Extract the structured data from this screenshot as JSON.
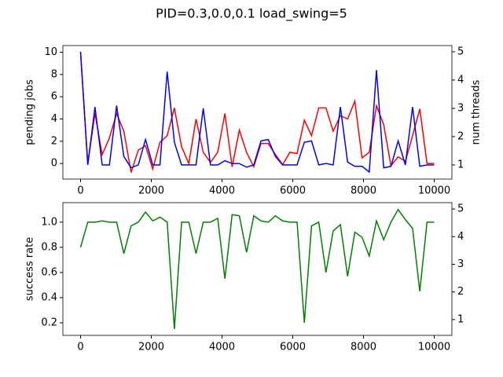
{
  "title": "PID=0.3,0.0,0.1 load_swing=5",
  "chart_data": [
    {
      "type": "line",
      "ylabel": "pending jobs",
      "ylabel_color": "#ff0000",
      "y2label": "num threads",
      "y2label_color": "#0000ff",
      "x": [
        0,
        204,
        408,
        612,
        816,
        1020,
        1224,
        1429,
        1633,
        1837,
        2041,
        2245,
        2449,
        2653,
        2857,
        3061,
        3265,
        3469,
        3673,
        3878,
        4082,
        4286,
        4490,
        4694,
        4898,
        5102,
        5306,
        5510,
        5714,
        5918,
        6122,
        6327,
        6531,
        6735,
        6939,
        7143,
        7347,
        7551,
        7755,
        7959,
        8163,
        8367,
        8571,
        8776,
        8980,
        9184,
        9388,
        9592,
        9796,
        10000
      ],
      "series": [
        {
          "name": "pending jobs",
          "color": "#ff0000",
          "axis": "y",
          "values": [
            10,
            0,
            4.5,
            0.8,
            2.3,
            4.5,
            2.9,
            -0.8,
            1.2,
            1.6,
            -0.5,
            1.9,
            2.5,
            5.0,
            1.5,
            0,
            4.0,
            1.0,
            0.1,
            1.0,
            4.5,
            -0.3,
            3.0,
            1.0,
            -0.3,
            1.8,
            1.8,
            0.8,
            -0.1,
            1.0,
            0.9,
            3.9,
            2.5,
            5.0,
            5.0,
            2.9,
            4.3,
            4.0,
            5.6,
            0.5,
            1.0,
            5.2,
            3.5,
            -0.2,
            0.6,
            0.2,
            2.5,
            4.9,
            0.0,
            0.0
          ]
        },
        {
          "name": "num threads",
          "color": "#0000ff",
          "axis": "y2",
          "values": [
            5,
            1,
            3.05,
            1,
            1,
            3.1,
            1.3,
            0.9,
            1,
            1.9,
            1,
            1,
            4.3,
            1.8,
            1,
            1,
            1,
            3,
            1,
            1,
            1.15,
            1.05,
            1.05,
            0.92,
            1,
            1.85,
            1.9,
            1.3,
            1,
            1,
            1,
            1.8,
            1.85,
            1,
            1.05,
            1,
            3.05,
            1.1,
            0.95,
            0.95,
            0.75,
            4.35,
            0.9,
            0.95,
            1.85,
            1,
            3.05,
            0.95,
            1,
            1
          ]
        }
      ],
      "xlim": [
        -500,
        10500
      ],
      "xticks": [
        0,
        2000,
        4000,
        6000,
        8000,
        10000
      ],
      "ylim": [
        -1.4,
        10.6
      ],
      "yticks": [
        0,
        2,
        4,
        6,
        8,
        10
      ],
      "y2lim": [
        0.5,
        5.22
      ],
      "y2ticks": [
        1,
        2,
        3,
        4,
        5
      ]
    },
    {
      "type": "line",
      "ylabel": "success rate",
      "ylabel_color": "#008000",
      "x": [
        0,
        204,
        408,
        612,
        816,
        1020,
        1224,
        1429,
        1633,
        1837,
        2041,
        2245,
        2449,
        2653,
        2857,
        3061,
        3265,
        3469,
        3673,
        3878,
        4082,
        4286,
        4490,
        4694,
        4898,
        5102,
        5306,
        5510,
        5714,
        5918,
        6122,
        6327,
        6531,
        6735,
        6939,
        7143,
        7347,
        7551,
        7755,
        7959,
        8163,
        8367,
        8571,
        8776,
        8980,
        9184,
        9388,
        9592,
        9796,
        10000
      ],
      "series": [
        {
          "name": "success rate",
          "color": "#008000",
          "axis": "y",
          "values": [
            0.8,
            1.0,
            1.0,
            1.01,
            1.0,
            1.0,
            0.75,
            0.97,
            1.0,
            1.08,
            1.01,
            1.04,
            1.0,
            0.15,
            1.0,
            1.0,
            0.75,
            1.0,
            1.0,
            1.03,
            0.55,
            1.06,
            1.05,
            0.76,
            1.05,
            1.01,
            1.0,
            1.05,
            1.01,
            1.0,
            1.0,
            0.2,
            0.97,
            1.0,
            0.6,
            0.93,
            0.98,
            0.57,
            0.92,
            0.88,
            0.73,
            1.01,
            0.86,
            1.0,
            1.1,
            1.02,
            0.95,
            0.45,
            1.0,
            1.0
          ]
        }
      ],
      "xlim": [
        -500,
        10500
      ],
      "xticks": [
        0,
        2000,
        4000,
        6000,
        8000,
        10000
      ],
      "ylim": [
        0.1,
        1.155
      ],
      "yticks": [
        0.2,
        0.4,
        0.6,
        0.8,
        {
          "value": 1,
          "label": "1.0"
        }
      ],
      "y2lim": [
        0.43,
        5.23
      ],
      "y2ticks": [
        1,
        2,
        3,
        4,
        5
      ]
    }
  ]
}
